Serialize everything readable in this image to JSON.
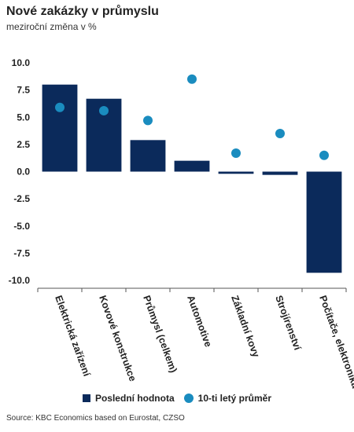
{
  "header": {
    "title": "Nové zakázky v průmyslu",
    "subtitle": "meziroční změna v %"
  },
  "legend": {
    "bar_label": "Poslední hodnota",
    "dot_label": "10-ti letý průměr"
  },
  "source": "Source: KBC Economics based on Eurostat, CZSO",
  "colors": {
    "bar": "#0b2a5b",
    "dot": "#1a8cbf",
    "axis": "#555555"
  },
  "chart_data": {
    "type": "bar",
    "categories": [
      "Elektrická zařízení",
      "Kovové konstrukce",
      "Průmysl (celkem)",
      "Automotive",
      "Základní kovy",
      "Strojírenství",
      "Počítače, elektronika"
    ],
    "series": [
      {
        "name": "Poslední hodnota",
        "type": "bar",
        "values": [
          8.0,
          6.7,
          2.9,
          1.0,
          -0.2,
          -0.3,
          -9.3
        ]
      },
      {
        "name": "10-ti letý průměr",
        "type": "scatter",
        "values": [
          5.9,
          5.6,
          4.7,
          8.5,
          1.7,
          3.5,
          1.5
        ]
      }
    ],
    "title": "Nové zakázky v průmyslu",
    "subtitle": "meziroční změna v %",
    "ylim": [
      -10,
      10
    ],
    "yticks": [
      10.0,
      7.5,
      5.0,
      2.5,
      0.0,
      -2.5,
      -5.0,
      -7.5,
      -10.0
    ],
    "ytick_labels": [
      "10.0",
      "7.5",
      "5.0",
      "2.5",
      "0.0",
      "-2.5",
      "-5.0",
      "-7.5",
      "-10.0"
    ],
    "grid": false,
    "legend_position": "bottom"
  }
}
